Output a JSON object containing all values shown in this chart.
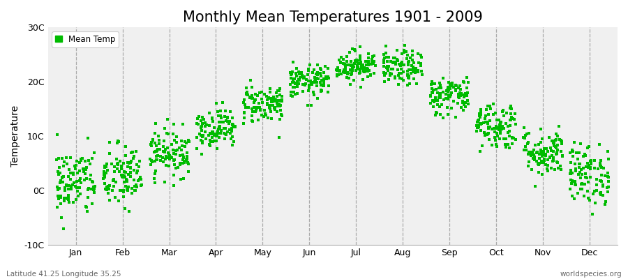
{
  "title": "Monthly Mean Temperatures 1901 - 2009",
  "ylabel": "Temperature",
  "bottom_left": "Latitude 41.25 Longitude 35.25",
  "bottom_right": "worldspecies.org",
  "legend_label": "Mean Temp",
  "dot_color": "#00bb00",
  "background_color": "#f0f0f0",
  "outer_background": "#ffffff",
  "ylim": [
    -10,
    30
  ],
  "yticks": [
    -10,
    0,
    10,
    20,
    30
  ],
  "ytick_labels": [
    "-10C",
    "0C",
    "10C",
    "20C",
    "30C"
  ],
  "months": [
    "Jan",
    "Feb",
    "Mar",
    "Apr",
    "May",
    "Jun",
    "Jul",
    "Aug",
    "Sep",
    "Oct",
    "Nov",
    "Dec"
  ],
  "monthly_means": [
    1.5,
    2.5,
    7.0,
    11.5,
    16.0,
    20.0,
    23.0,
    22.5,
    17.5,
    12.0,
    7.0,
    3.0
  ],
  "monthly_stds": [
    3.2,
    3.0,
    2.2,
    1.8,
    1.8,
    1.5,
    1.4,
    1.6,
    1.8,
    2.2,
    2.2,
    2.8
  ],
  "n_years": 109,
  "seed": 42,
  "marker_size": 6,
  "title_fontsize": 15,
  "axis_fontsize": 10,
  "tick_fontsize": 9
}
